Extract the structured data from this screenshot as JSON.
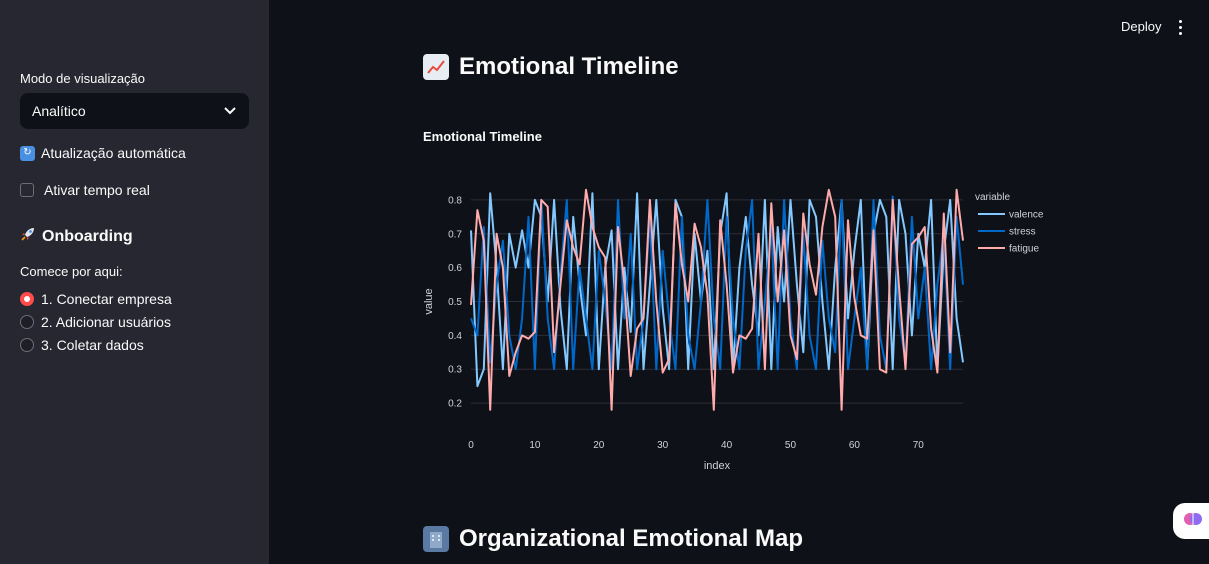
{
  "sidebar": {
    "mode_label": "Modo de visualização",
    "mode_value": "Analítico",
    "refresh_label": "Atualização automática",
    "realtime_label": "Ativar tempo real",
    "onboarding_title": "Onboarding",
    "onboarding_sub": "Comece por aqui:",
    "steps": [
      "1. Conectar empresa",
      "2. Adicionar usuários",
      "3. Coletar dados"
    ],
    "selected_step": 0
  },
  "header": {
    "deploy_label": "Deploy"
  },
  "main": {
    "title": "Emotional Timeline",
    "section2_title": "Organizational Emotional Map"
  },
  "chart_data": {
    "type": "line",
    "title": "Emotional Timeline",
    "xlabel": "index",
    "ylabel": "value",
    "legend_title": "variable",
    "legend_position": "top-right",
    "grid": true,
    "xlim": [
      0,
      77
    ],
    "ylim": [
      0.15,
      0.85
    ],
    "xticks": [
      0,
      10,
      20,
      30,
      40,
      50,
      60,
      70
    ],
    "yticks": [
      0.2,
      0.3,
      0.4,
      0.5,
      0.6,
      0.7,
      0.8
    ],
    "colors": {
      "valence": "#83c9ff",
      "stress": "#0068c9",
      "fatigue": "#ffabab"
    },
    "series": [
      {
        "name": "valence",
        "values": [
          0.71,
          0.25,
          0.3,
          0.82,
          0.6,
          0.3,
          0.7,
          0.6,
          0.71,
          0.6,
          0.8,
          0.75,
          0.5,
          0.8,
          0.48,
          0.3,
          0.75,
          0.55,
          0.4,
          0.82,
          0.3,
          0.6,
          0.71,
          0.3,
          0.6,
          0.41,
          0.82,
          0.3,
          0.55,
          0.8,
          0.48,
          0.3,
          0.8,
          0.75,
          0.3,
          0.7,
          0.5,
          0.65,
          0.3,
          0.7,
          0.82,
          0.3,
          0.6,
          0.75,
          0.55,
          0.4,
          0.8,
          0.3,
          0.72,
          0.5,
          0.8,
          0.55,
          0.35,
          0.8,
          0.75,
          0.5,
          0.3,
          0.6,
          0.8,
          0.45,
          0.65,
          0.8,
          0.3,
          0.7,
          0.8,
          0.75,
          0.3,
          0.8,
          0.7,
          0.4,
          0.7,
          0.6,
          0.8,
          0.3,
          0.65,
          0.8,
          0.45,
          0.32
        ]
      },
      {
        "name": "stress",
        "values": [
          0.45,
          0.4,
          0.72,
          0.32,
          0.55,
          0.68,
          0.4,
          0.3,
          0.45,
          0.75,
          0.3,
          0.8,
          0.45,
          0.3,
          0.58,
          0.8,
          0.3,
          0.6,
          0.45,
          0.3,
          0.65,
          0.5,
          0.3,
          0.8,
          0.45,
          0.7,
          0.3,
          0.45,
          0.75,
          0.3,
          0.65,
          0.45,
          0.3,
          0.75,
          0.4,
          0.3,
          0.5,
          0.8,
          0.45,
          0.3,
          0.75,
          0.45,
          0.3,
          0.65,
          0.8,
          0.3,
          0.5,
          0.72,
          0.3,
          0.8,
          0.45,
          0.3,
          0.7,
          0.4,
          0.3,
          0.68,
          0.45,
          0.35,
          0.8,
          0.3,
          0.45,
          0.6,
          0.3,
          0.8,
          0.4,
          0.3,
          0.81,
          0.45,
          0.32,
          0.75,
          0.45,
          0.6,
          0.3,
          0.55,
          0.7,
          0.3,
          0.75,
          0.55
        ]
      },
      {
        "name": "fatigue",
        "values": [
          0.49,
          0.77,
          0.68,
          0.18,
          0.7,
          0.6,
          0.28,
          0.35,
          0.4,
          0.39,
          0.41,
          0.8,
          0.78,
          0.35,
          0.55,
          0.74,
          0.66,
          0.61,
          0.83,
          0.72,
          0.66,
          0.63,
          0.18,
          0.72,
          0.55,
          0.28,
          0.42,
          0.45,
          0.8,
          0.5,
          0.29,
          0.33,
          0.79,
          0.61,
          0.5,
          0.73,
          0.66,
          0.52,
          0.18,
          0.74,
          0.55,
          0.29,
          0.4,
          0.39,
          0.42,
          0.7,
          0.3,
          0.79,
          0.5,
          0.71,
          0.4,
          0.33,
          0.76,
          0.61,
          0.52,
          0.72,
          0.83,
          0.75,
          0.18,
          0.74,
          0.51,
          0.4,
          0.39,
          0.71,
          0.3,
          0.29,
          0.8,
          0.54,
          0.3,
          0.67,
          0.69,
          0.72,
          0.42,
          0.29,
          0.76,
          0.35,
          0.83,
          0.68
        ]
      }
    ]
  }
}
